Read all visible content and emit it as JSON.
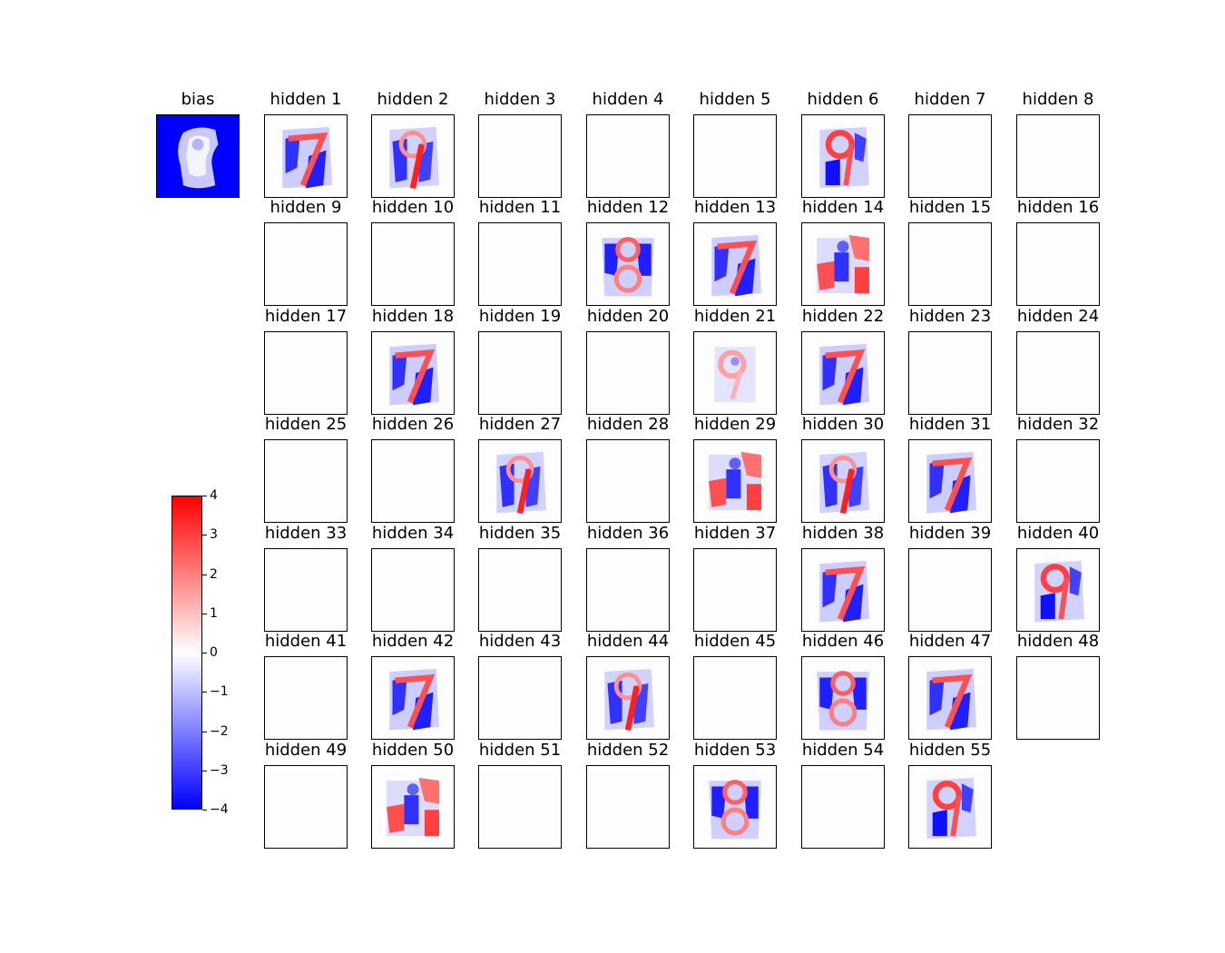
{
  "chart_data": {
    "type": "heatmap",
    "description_of_cells": "Grid of 28x28 weight images: bias plus 55 hidden units, diverging colormap",
    "colormap": {
      "name": "bwr",
      "low": "#0000ff",
      "mid": "#ffffff",
      "high": "#ff0000"
    },
    "colorbar": {
      "range": [
        -4,
        4
      ],
      "ticks": [
        4,
        3,
        2,
        1,
        0,
        -1,
        -2,
        -3,
        -4
      ],
      "tick_labels": [
        "4",
        "3",
        "2",
        "1",
        "0",
        "−1",
        "−2",
        "−3",
        "−4"
      ]
    },
    "bias": {
      "title": "bias",
      "pattern": "bias"
    },
    "hidden_units": [
      {
        "title": "hidden 1",
        "pattern": "seven-red"
      },
      {
        "title": "hidden 2",
        "pattern": "nine-red-stroke"
      },
      {
        "title": "hidden 3",
        "pattern": "blank"
      },
      {
        "title": "hidden 4",
        "pattern": "blank"
      },
      {
        "title": "hidden 5",
        "pattern": "blank"
      },
      {
        "title": "hidden 6",
        "pattern": "nine-red"
      },
      {
        "title": "hidden 7",
        "pattern": "blank"
      },
      {
        "title": "hidden 8",
        "pattern": "blank"
      },
      {
        "title": "hidden 9",
        "pattern": "blank"
      },
      {
        "title": "hidden 10",
        "pattern": "blank"
      },
      {
        "title": "hidden 11",
        "pattern": "blank"
      },
      {
        "title": "hidden 12",
        "pattern": "eight-red"
      },
      {
        "title": "hidden 13",
        "pattern": "seven-red"
      },
      {
        "title": "hidden 14",
        "pattern": "red-blob"
      },
      {
        "title": "hidden 15",
        "pattern": "blank"
      },
      {
        "title": "hidden 16",
        "pattern": "blank"
      },
      {
        "title": "hidden 17",
        "pattern": "blank"
      },
      {
        "title": "hidden 18",
        "pattern": "seven-red"
      },
      {
        "title": "hidden 19",
        "pattern": "blank"
      },
      {
        "title": "hidden 20",
        "pattern": "blank"
      },
      {
        "title": "hidden 21",
        "pattern": "nine-faint"
      },
      {
        "title": "hidden 22",
        "pattern": "seven-red"
      },
      {
        "title": "hidden 23",
        "pattern": "blank"
      },
      {
        "title": "hidden 24",
        "pattern": "blank"
      },
      {
        "title": "hidden 25",
        "pattern": "blank"
      },
      {
        "title": "hidden 26",
        "pattern": "blank"
      },
      {
        "title": "hidden 27",
        "pattern": "nine-red-stroke"
      },
      {
        "title": "hidden 28",
        "pattern": "blank"
      },
      {
        "title": "hidden 29",
        "pattern": "red-blob"
      },
      {
        "title": "hidden 30",
        "pattern": "nine-red-stroke"
      },
      {
        "title": "hidden 31",
        "pattern": "seven-red"
      },
      {
        "title": "hidden 32",
        "pattern": "blank"
      },
      {
        "title": "hidden 33",
        "pattern": "blank"
      },
      {
        "title": "hidden 34",
        "pattern": "blank"
      },
      {
        "title": "hidden 35",
        "pattern": "blank"
      },
      {
        "title": "hidden 36",
        "pattern": "blank"
      },
      {
        "title": "hidden 37",
        "pattern": "blank"
      },
      {
        "title": "hidden 38",
        "pattern": "seven-red"
      },
      {
        "title": "hidden 39",
        "pattern": "blank"
      },
      {
        "title": "hidden 40",
        "pattern": "nine-red"
      },
      {
        "title": "hidden 41",
        "pattern": "blank"
      },
      {
        "title": "hidden 42",
        "pattern": "seven-red"
      },
      {
        "title": "hidden 43",
        "pattern": "blank"
      },
      {
        "title": "hidden 44",
        "pattern": "nine-red-stroke"
      },
      {
        "title": "hidden 45",
        "pattern": "blank"
      },
      {
        "title": "hidden 46",
        "pattern": "eight-red"
      },
      {
        "title": "hidden 47",
        "pattern": "seven-red"
      },
      {
        "title": "hidden 48",
        "pattern": "blank"
      },
      {
        "title": "hidden 49",
        "pattern": "blank"
      },
      {
        "title": "hidden 50",
        "pattern": "red-blob"
      },
      {
        "title": "hidden 51",
        "pattern": "blank"
      },
      {
        "title": "hidden 52",
        "pattern": "blank"
      },
      {
        "title": "hidden 53",
        "pattern": "eight-red"
      },
      {
        "title": "hidden 54",
        "pattern": "blank"
      },
      {
        "title": "hidden 55",
        "pattern": "nine-red"
      }
    ]
  }
}
